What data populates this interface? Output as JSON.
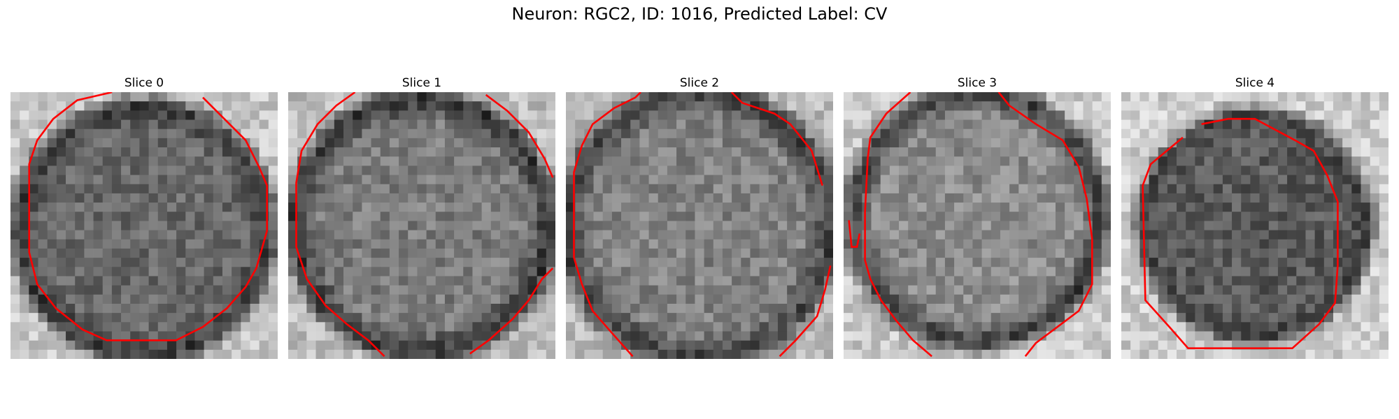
{
  "figure": {
    "title": "Neuron: RGC2, ID: 1016, Predicted Label: CV"
  },
  "panels": [
    {
      "title": "Slice 0"
    },
    {
      "title": "Slice 1"
    },
    {
      "title": "Slice 2"
    },
    {
      "title": "Slice 3"
    },
    {
      "title": "Slice 4"
    }
  ],
  "style": {
    "contour_color": "#ff0000",
    "colormap": "gray"
  }
}
